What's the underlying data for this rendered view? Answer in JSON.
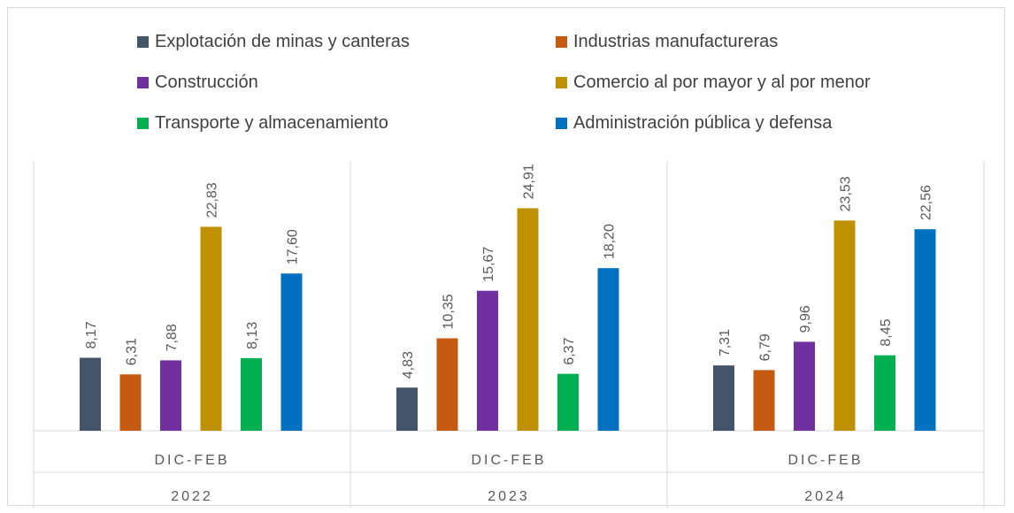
{
  "chart_data": {
    "type": "bar",
    "groups": [
      {
        "category": "DIC-FEB",
        "year": "2022"
      },
      {
        "category": "DIC-FEB",
        "year": "2023"
      },
      {
        "category": "DIC-FEB",
        "year": "2024"
      }
    ],
    "series": [
      {
        "name": "Explotación de minas y canteras",
        "color": "#44546a",
        "values": [
          8.17,
          4.83,
          7.31
        ],
        "labels": [
          "8,17",
          "4,83",
          "7,31"
        ]
      },
      {
        "name": "Industrias manufactureras",
        "color": "#c55a11",
        "values": [
          6.31,
          10.35,
          6.79
        ],
        "labels": [
          "6,31",
          "10,35",
          "6,79"
        ]
      },
      {
        "name": "Construcción",
        "color": "#7030a0",
        "values": [
          7.88,
          15.67,
          9.96
        ],
        "labels": [
          "7,88",
          "15,67",
          "9,96"
        ]
      },
      {
        "name": "Comercio al por mayor y al por menor",
        "color": "#bf9000",
        "values": [
          22.83,
          24.91,
          23.53
        ],
        "labels": [
          "22,83",
          "24,91",
          "23,53"
        ]
      },
      {
        "name": "Transporte y almacenamiento",
        "color": "#00b050",
        "values": [
          8.13,
          6.37,
          8.45
        ],
        "labels": [
          "8,13",
          "6,37",
          "8,45"
        ]
      },
      {
        "name": "Administración pública y defensa",
        "color": "#0070c0",
        "values": [
          17.6,
          18.2,
          22.56
        ],
        "labels": [
          "17,60",
          "18,20",
          "22,56"
        ]
      }
    ],
    "ylim": [
      0,
      25
    ],
    "legend_position": "top",
    "grid": false,
    "title": "",
    "xlabel": "",
    "ylabel": ""
  }
}
